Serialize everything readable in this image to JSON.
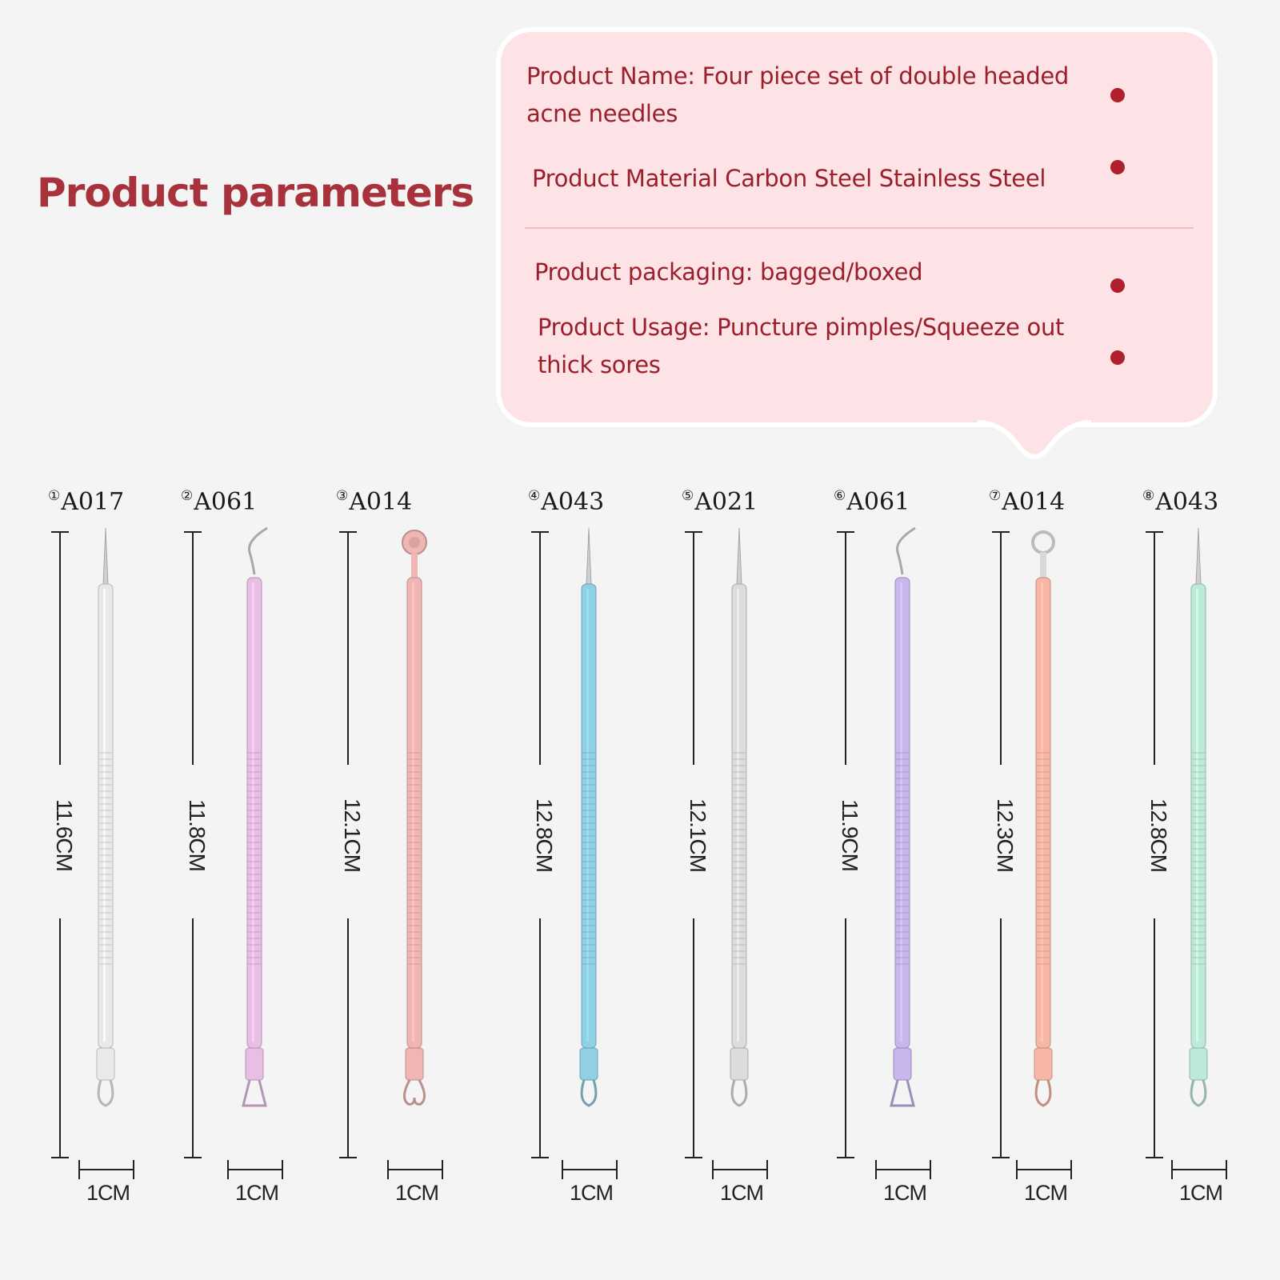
{
  "heading": "Product parameters",
  "params": {
    "name": "Product Name: Four piece set of double headed acne needles",
    "material": "Product Material Carbon Steel Stainless Steel",
    "packaging": "Product packaging: bagged/boxed",
    "usage": "Product Usage: Puncture pimples/Squeeze out thick sores"
  },
  "colors": {
    "heading": "#a8323c",
    "param_text": "#9a1f2b",
    "bubble": "#fde3e5",
    "bullet": "#b0202c"
  },
  "tools": [
    {
      "num": "①",
      "model": "A017",
      "length": "11.6CM",
      "scale": "1CM",
      "color": "#e9e9e9",
      "tip": "needle",
      "end": "loop"
    },
    {
      "num": "②",
      "model": "A061",
      "length": "11.8CM",
      "scale": "1CM",
      "color": "#e8bfe4",
      "tip": "hook",
      "end": "triangle"
    },
    {
      "num": "③",
      "model": "A014",
      "length": "12.1CM",
      "scale": "1CM",
      "color": "#f0b6b4",
      "tip": "spoon",
      "end": "heart"
    },
    {
      "num": "④",
      "model": "A043",
      "length": "12.8CM",
      "scale": "1CM",
      "color": "#8fd0e4",
      "tip": "needle",
      "end": "loop"
    },
    {
      "num": "⑤",
      "model": "A021",
      "length": "12.1CM",
      "scale": "1CM",
      "color": "#dcdcdc",
      "tip": "lance",
      "end": "loop"
    },
    {
      "num": "⑥",
      "model": "A061",
      "length": "11.9CM",
      "scale": "1CM",
      "color": "#c8b6ec",
      "tip": "hook",
      "end": "triangle"
    },
    {
      "num": "⑦",
      "model": "A014",
      "length": "12.3CM",
      "scale": "1CM",
      "color": "#f8b7a6",
      "tip": "ring",
      "end": "loop"
    },
    {
      "num": "⑧",
      "model": "A043",
      "length": "12.8CM",
      "scale": "1CM",
      "color": "#bde9d8",
      "tip": "needle",
      "end": "loop"
    }
  ]
}
